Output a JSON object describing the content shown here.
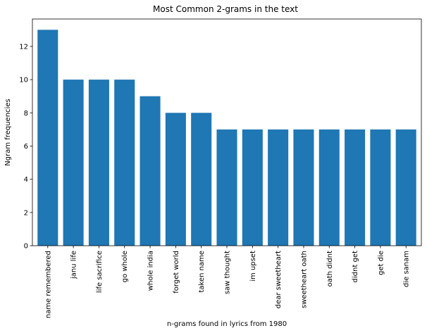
{
  "chart_data": {
    "type": "bar",
    "title": "Most Common 2-grams in the text",
    "xlabel": "n-grams found in lyrics from 1980",
    "ylabel": "Ngram frequencies",
    "categories": [
      "name remembered",
      "janu life",
      "life sacrifice",
      "go whole",
      "whole india",
      "forget world",
      "taken name",
      "saw thought",
      "im upset",
      "dear sweetheart",
      "sweetheart oath",
      "oath didnt",
      "didnt get",
      "get die",
      "die sanam"
    ],
    "values": [
      13,
      10,
      10,
      10,
      9,
      8,
      8,
      7,
      7,
      7,
      7,
      7,
      7,
      7,
      7
    ],
    "yticks": [
      0,
      2,
      4,
      6,
      8,
      10,
      12
    ],
    "ylim": [
      0,
      13.65
    ],
    "bar_color": "#1f77b4",
    "grid": false,
    "legend": "none"
  }
}
